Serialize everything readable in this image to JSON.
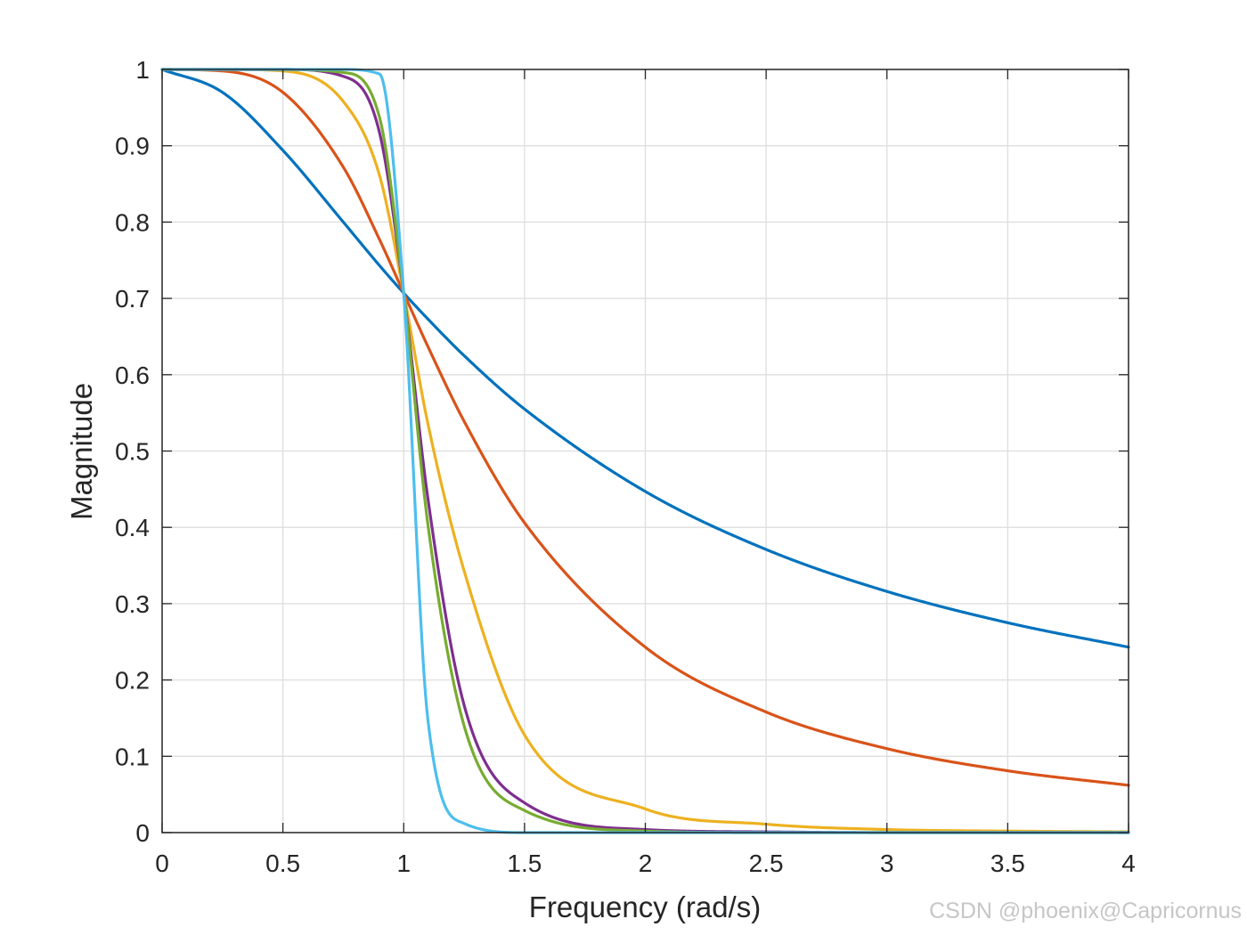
{
  "chart_data": {
    "type": "line",
    "title": "",
    "xlabel": "Frequency (rad/s)",
    "ylabel": "Magnitude",
    "xlim": [
      0,
      4
    ],
    "ylim": [
      0,
      1
    ],
    "xticks": [
      0,
      0.5,
      1,
      1.5,
      2,
      2.5,
      3,
      3.5,
      4
    ],
    "xtick_labels": [
      "0",
      "0.5",
      "1",
      "1.5",
      "2",
      "2.5",
      "3",
      "3.5",
      "4"
    ],
    "yticks": [
      0,
      0.1,
      0.2,
      0.3,
      0.4,
      0.5,
      0.6,
      0.7,
      0.8,
      0.9,
      1
    ],
    "ytick_labels": [
      "0",
      "0.1",
      "0.2",
      "0.3",
      "0.4",
      "0.5",
      "0.6",
      "0.7",
      "0.8",
      "0.9",
      "1"
    ],
    "grid": true,
    "legend": "none",
    "x": [
      0,
      0.25,
      0.5,
      0.75,
      0.9,
      1,
      1.1,
      1.25,
      1.5,
      2,
      2.5,
      3,
      3.5,
      4
    ],
    "series": [
      {
        "color": "#0072BD",
        "values": [
          1,
          0.97,
          0.894,
          0.8,
          0.743,
          0.707,
          0.673,
          0.625,
          0.555,
          0.447,
          0.371,
          0.316,
          0.275,
          0.243
        ]
      },
      {
        "color": "#D95319",
        "values": [
          1,
          0.998,
          0.97,
          0.872,
          0.777,
          0.707,
          0.637,
          0.539,
          0.406,
          0.243,
          0.158,
          0.11,
          0.081,
          0.062
        ]
      },
      {
        "color": "#EDB120",
        "values": [
          1,
          1,
          0.998,
          0.958,
          0.861,
          0.707,
          0.536,
          0.343,
          0.128,
          0.031,
          0.011,
          0.004,
          0.002,
          0.001
        ]
      },
      {
        "color": "#7E2F8E",
        "values": [
          1,
          1,
          1,
          0.991,
          0.917,
          0.707,
          0.438,
          0.167,
          0.039,
          0.004,
          0.001,
          0,
          0,
          0
        ]
      },
      {
        "color": "#77AC30",
        "values": [
          1,
          1,
          1,
          0.996,
          0.937,
          0.707,
          0.404,
          0.14,
          0.029,
          0.002,
          0,
          0,
          0,
          0
        ]
      },
      {
        "color": "#4DBEEE",
        "values": [
          1,
          1,
          1,
          1,
          0.994,
          0.707,
          0.148,
          0.012,
          0,
          0,
          0,
          0,
          0,
          0
        ]
      }
    ]
  },
  "watermark": "CSDN @phoenix@Capricornus"
}
